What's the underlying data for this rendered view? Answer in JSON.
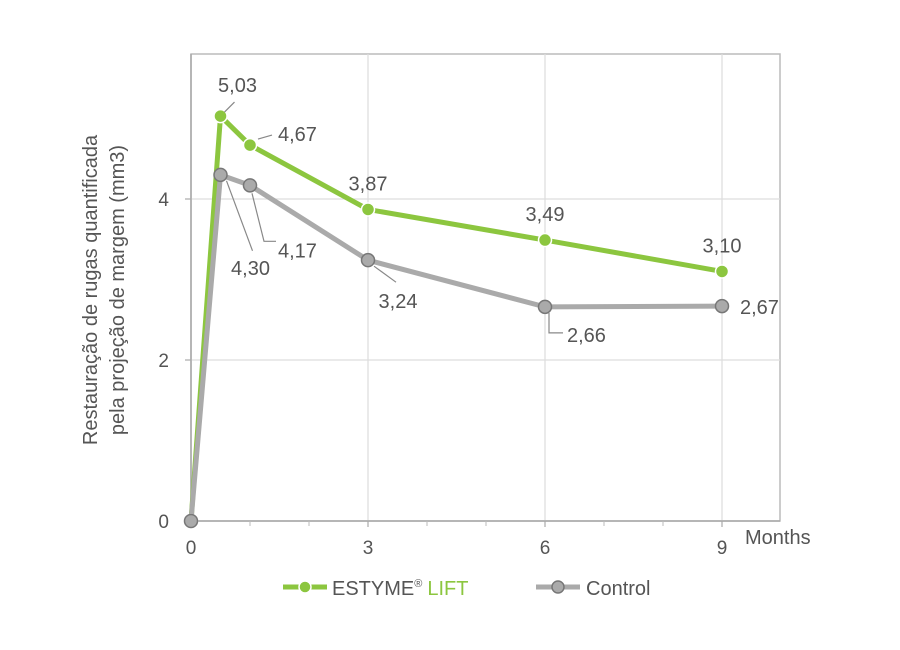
{
  "chart_data": {
    "type": "line",
    "title": "",
    "xlabel": "Months",
    "ylabel_lines": [
      "Restauração de rugas quantificada",
      "pela projeção de margem (mm3)"
    ],
    "xlim": [
      0,
      9
    ],
    "ylim": [
      0,
      5.5
    ],
    "x_ticks": [
      0,
      3,
      6,
      9
    ],
    "x_minor_ticks": [
      1,
      2,
      4,
      5,
      7,
      8
    ],
    "y_ticks": [
      0,
      2,
      4
    ],
    "y_tick_labels": [
      "0",
      "2",
      "4"
    ],
    "x_tick_labels": [
      "0",
      "3",
      "6",
      "9"
    ],
    "grid": true,
    "legend_position": "bottom",
    "x": [
      0,
      0.5,
      1,
      3,
      6,
      9
    ],
    "series": [
      {
        "name_main": "ESTYME",
        "name_mark": "®",
        "name_accent": "LIFT",
        "color": "#8cc63f",
        "values": [
          0,
          5.03,
          4.67,
          3.87,
          3.49,
          3.1
        ],
        "labels": [
          "",
          "5,03",
          "4,67",
          "3,87",
          "3,49",
          "3,10"
        ]
      },
      {
        "name": "Control",
        "color": "#aaaaaa",
        "values": [
          0,
          4.3,
          4.17,
          3.24,
          2.66,
          2.67
        ],
        "labels": [
          "",
          "4,30",
          "4,17",
          "3,24",
          "2,66",
          "2,67"
        ]
      }
    ]
  }
}
